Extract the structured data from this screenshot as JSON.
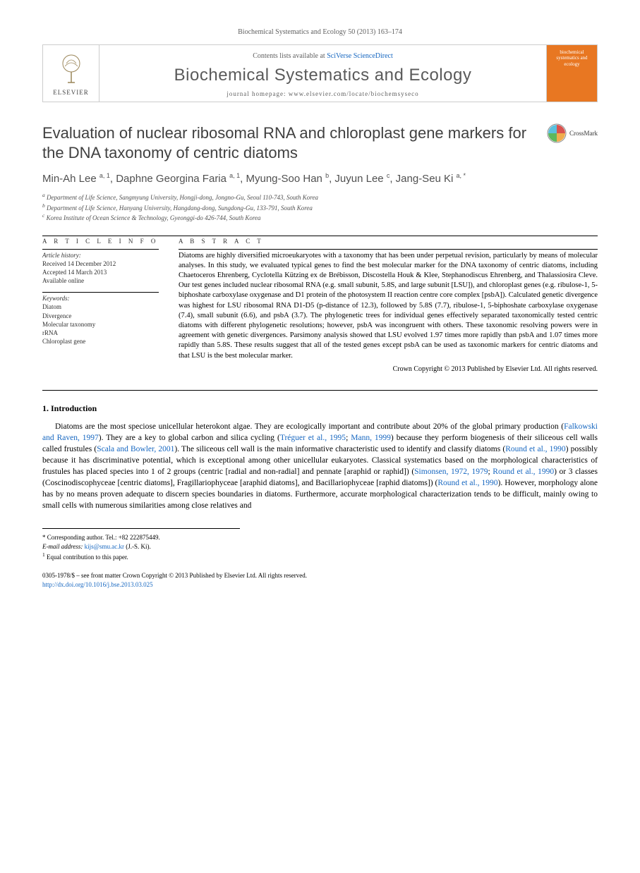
{
  "journal_ref": "Biochemical Systematics and Ecology 50 (2013) 163–174",
  "header": {
    "contents_prefix": "Contents lists available at ",
    "contents_link": "SciVerse ScienceDirect",
    "journal_title": "Biochemical Systematics and Ecology",
    "homepage_prefix": "journal homepage: ",
    "homepage_url": "www.elsevier.com/locate/biochemsyseco",
    "elsevier_label": "ELSEVIER",
    "cover_label": "biochemical systematics and ecology"
  },
  "crossmark_label": "CrossMark",
  "article_title": "Evaluation of nuclear ribosomal RNA and chloroplast gene markers for the DNA taxonomy of centric diatoms",
  "authors_html": "Min-Ah Lee <sup>a, 1</sup>, Daphne Georgina Faria <sup>a, 1</sup>, Myung-Soo Han <sup>b</sup>, Juyun Lee <sup>c</sup>, Jang-Seu Ki <sup>a, *</sup>",
  "affiliations": [
    "a Department of Life Science, Sangmyung University, Hongji-dong, Jongno-Gu, Seoul 110-743, South Korea",
    "b Department of Life Science, Hanyang University, Hangdang-dong, Sungdong-Gu, 133-791, South Korea",
    "c Korea Institute of Ocean Science & Technology, Gyeonggi-do 426-744, South Korea"
  ],
  "info": {
    "heading": "A R T I C L E   I N F O",
    "history_label": "Article history:",
    "received": "Received 14 December 2012",
    "accepted": "Accepted 14 March 2013",
    "available": "Available online",
    "keywords_label": "Keywords:",
    "keywords": [
      "Diatom",
      "Divergence",
      "Molecular taxonomy",
      "rRNA",
      "Chloroplast gene"
    ]
  },
  "abstract": {
    "heading": "A B S T R A C T",
    "text": "Diatoms are highly diversified microeukaryotes with a taxonomy that has been under perpetual revision, particularly by means of molecular analyses. In this study, we evaluated typical genes to find the best molecular marker for the DNA taxonomy of centric diatoms, including Chaetoceros Ehrenberg, Cyclotella Kützing ex de Brébisson, Discostella Houk & Klee, Stephanodiscus Ehrenberg, and Thalassiosira Cleve. Our test genes included nuclear ribosomal RNA (e.g. small subunit, 5.8S, and large subunit [LSU]), and chloroplast genes (e.g. ribulose-1, 5-biphoshate carboxylase oxygenase and D1 protein of the photosystem II reaction centre core complex [psbA]). Calculated genetic divergence was highest for LSU ribosomal RNA D1-D5 (p-distance of 12.3), followed by 5.8S (7.7), ribulose-1, 5-biphoshate carboxylase oxygenase (7.4), small subunit (6.6), and psbA (3.7). The phylogenetic trees for individual genes effectively separated taxonomically tested centric diatoms with different phylogenetic resolutions; however, psbA was incongruent with others. These taxonomic resolving powers were in agreement with genetic divergences. Parsimony analysis showed that LSU evolved 1.97 times more rapidly than psbA and 1.07 times more rapidly than 5.8S. These results suggest that all of the tested genes except psbA can be used as taxonomic markers for centric diatoms and that LSU is the best molecular marker.",
    "copyright": "Crown Copyright © 2013 Published by Elsevier Ltd. All rights reserved."
  },
  "section1": {
    "heading": "1. Introduction",
    "paragraph": "Diatoms are the most speciose unicellular heterokont algae. They are ecologically important and contribute about 20% of the global primary production (Falkowski and Raven, 1997). They are a key to global carbon and silica cycling (Tréguer et al., 1995; Mann, 1999) because they perform biogenesis of their siliceous cell walls called frustules (Scala and Bowler, 2001). The siliceous cell wall is the main informative characteristic used to identify and classify diatoms (Round et al., 1990) possibly because it has discriminative potential, which is exceptional among other unicellular eukaryotes. Classical systematics based on the morphological characteristics of frustules has placed species into 1 of 2 groups (centric [radial and non-radial] and pennate [araphid or raphid]) (Simonsen, 1972, 1979; Round et al., 1990) or 3 classes (Coscinodiscophyceae [centric diatoms], Fragillariophyceae [araphid diatoms], and Bacillariophyceae [raphid diatoms]) (Round et al., 1990). However, morphology alone has by no means proven adequate to discern species boundaries in diatoms. Furthermore, accurate morphological characterization tends to be difficult, mainly owing to small cells with numerous similarities among close relatives and"
  },
  "footnotes": {
    "corresponding": "* Corresponding author. Tel.: +82 222875449.",
    "email_label": "E-mail address: ",
    "email": "kijs@smu.ac.kr",
    "email_suffix": " (J.-S. Ki).",
    "equal": "1 Equal contribution to this paper."
  },
  "footer": {
    "line1": "0305-1978/$ – see front matter Crown Copyright © 2013 Published by Elsevier Ltd. All rights reserved.",
    "doi": "http://dx.doi.org/10.1016/j.bse.2013.03.025"
  },
  "colors": {
    "link": "#1566c0",
    "cover_bg": "#e87722",
    "text_gray": "#505050"
  }
}
